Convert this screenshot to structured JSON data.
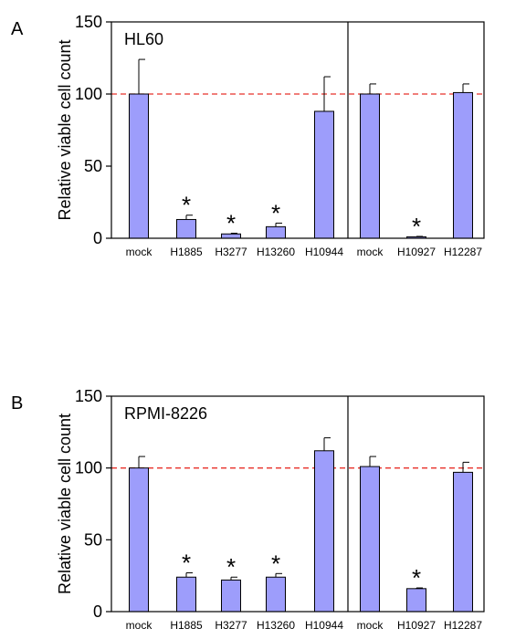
{
  "colors": {
    "bar_fill": "#9d9dfb",
    "bar_stroke": "#000000",
    "reference_line": "#e8312a",
    "axis": "#000000"
  },
  "chart_data": [
    {
      "type": "bar",
      "panel_label": "A",
      "cell_line": "HL60",
      "ylabel": "Relative viable cell count",
      "ylim": [
        0,
        150
      ],
      "yticks": [
        "0",
        "50",
        "100",
        "150"
      ],
      "reference_line": 100,
      "reference_line_style": "dashed",
      "groups": [
        {
          "categories": [
            "mock",
            "H1885",
            "H3277",
            "H13260",
            "H10944"
          ],
          "values": [
            100,
            13,
            3,
            8,
            88
          ],
          "errors": [
            24,
            3,
            0.5,
            2.5,
            24
          ],
          "significant": [
            false,
            true,
            true,
            true,
            false
          ]
        },
        {
          "categories": [
            "mock",
            "H10927",
            "H12287"
          ],
          "values": [
            100,
            1,
            101
          ],
          "errors": [
            7,
            0.3,
            6
          ],
          "significant": [
            false,
            true,
            false
          ]
        }
      ]
    },
    {
      "type": "bar",
      "panel_label": "B",
      "cell_line": "RPMI-8226",
      "ylabel": "Relative viable cell count",
      "ylim": [
        0,
        150
      ],
      "yticks": [
        "0",
        "50",
        "100",
        "150"
      ],
      "reference_line": 100,
      "reference_line_style": "dashed",
      "groups": [
        {
          "categories": [
            "mock",
            "H1885",
            "H3277",
            "H13260",
            "H10944"
          ],
          "values": [
            100,
            24,
            22,
            24,
            112
          ],
          "errors": [
            8,
            3,
            2,
            2.5,
            9
          ],
          "significant": [
            false,
            true,
            true,
            true,
            false
          ]
        },
        {
          "categories": [
            "mock",
            "H10927",
            "H12287"
          ],
          "values": [
            101,
            16,
            97
          ],
          "errors": [
            7,
            0.5,
            7
          ],
          "significant": [
            false,
            true,
            false
          ]
        }
      ]
    }
  ]
}
